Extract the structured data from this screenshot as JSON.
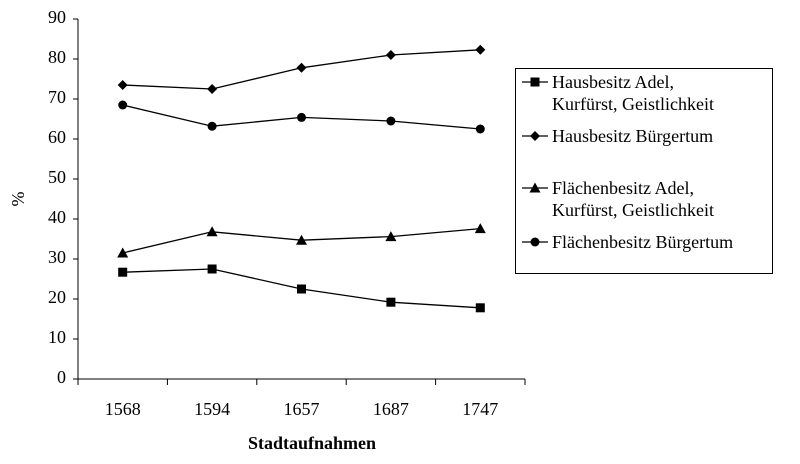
{
  "chart_data": {
    "type": "line",
    "x_label": "Stadtaufnahmen",
    "y_label": "%",
    "categories": [
      "1568",
      "1594",
      "1657",
      "1687",
      "1747"
    ],
    "series": [
      {
        "name": "Hausbesitz Adel,\nKurfürst, Geistlichkeit",
        "color": "#000000",
        "marker": "square",
        "values": [
          26.7,
          27.5,
          22.5,
          19.2,
          17.8
        ]
      },
      {
        "name": "Hausbesitz Bürgertum",
        "color": "#000000",
        "marker": "diamond",
        "values": [
          73.5,
          72.5,
          77.8,
          81,
          82.3
        ]
      },
      {
        "name": "Flächenbesitz Adel,\nKurfürst, Geistlichkeit",
        "color": "#000000",
        "marker": "triangle",
        "values": [
          31.5,
          36.8,
          34.7,
          35.6,
          37.6
        ]
      },
      {
        "name": "Flächenbesitz Bürgertum",
        "color": "#000000",
        "marker": "circle",
        "values": [
          68.5,
          63.2,
          65.4,
          64.5,
          62.5
        ]
      }
    ],
    "ylim": [
      0,
      90
    ],
    "yticks": [
      0,
      10,
      20,
      30,
      40,
      50,
      60,
      70,
      80,
      90
    ],
    "grid": false,
    "legend": "right"
  }
}
